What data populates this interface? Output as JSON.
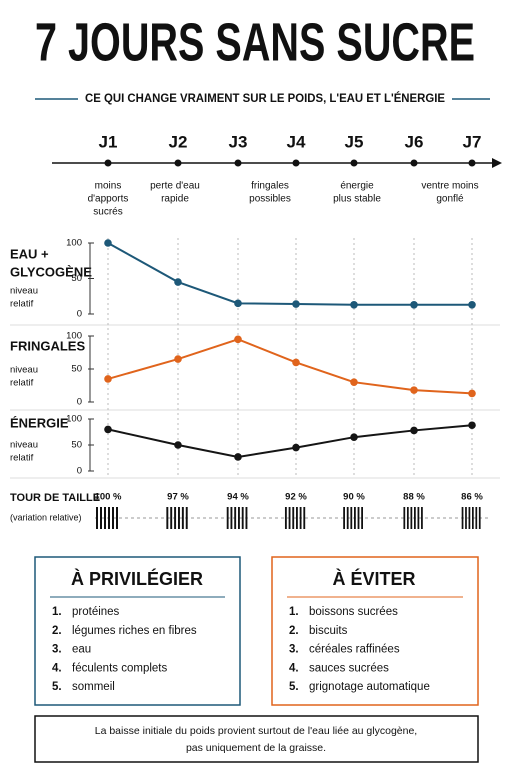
{
  "title": "7 JOURS SANS SUCRE",
  "subtitle": "CE QUI CHANGE VRAIMENT SUR LE POIDS, L'EAU ET L'ÉNERGIE",
  "timeline": {
    "days": [
      "J1",
      "J2",
      "J3",
      "J4",
      "J5",
      "J6",
      "J7"
    ],
    "notes": [
      [
        "moins",
        "d'apports",
        "sucrés"
      ],
      [
        "perte d'eau",
        "rapide"
      ],
      [
        "fringales",
        "possibles"
      ],
      [
        "énergie",
        "plus stable"
      ],
      [
        "ventre moins",
        "gonflé"
      ]
    ]
  },
  "chart_data": [
    {
      "type": "line",
      "title": [
        "EAU +",
        "GLYCOGÈNE"
      ],
      "y_label": [
        "niveau",
        "relatif"
      ],
      "categories": [
        null,
        null,
        null,
        null,
        null,
        null,
        null
      ],
      "series": [
        {
          "color": "#1d5878",
          "values": [
            100,
            45,
            15,
            14,
            13,
            13,
            13
          ]
        }
      ],
      "ylim": [
        0,
        100
      ],
      "yticks": [
        0,
        50,
        100
      ],
      "grid": true
    },
    {
      "type": "line",
      "title": [
        "FRINGALES"
      ],
      "y_label": [
        "niveau",
        "relatif"
      ],
      "categories": [
        null,
        null,
        null,
        null,
        null,
        null,
        null
      ],
      "series": [
        {
          "color": "#e0641c",
          "values": [
            35,
            65,
            95,
            60,
            30,
            18,
            13
          ]
        }
      ],
      "ylim": [
        0,
        100
      ],
      "yticks": [
        0,
        50,
        100
      ],
      "grid": true
    },
    {
      "type": "line",
      "title": [
        "ÉNERGIE"
      ],
      "y_label": [
        "niveau",
        "relatif"
      ],
      "categories": [
        null,
        null,
        null,
        null,
        null,
        null,
        null
      ],
      "series": [
        {
          "color": "#151515",
          "values": [
            80,
            50,
            27,
            45,
            65,
            78,
            88
          ]
        }
      ],
      "ylim": [
        0,
        100
      ],
      "yticks": [
        0,
        50,
        100
      ],
      "grid": true
    }
  ],
  "waist": {
    "label": "TOUR DE TAILLE",
    "sublabel": "(variation relative)",
    "values": [
      100,
      97,
      94,
      92,
      90,
      88,
      86
    ],
    "value_labels": [
      "100 %",
      "97 %",
      "94 %",
      "92 %",
      "90 %",
      "88 %",
      "86 %"
    ]
  },
  "favor": {
    "title": "À PRIVILÉGIER",
    "numbers": [
      "1.",
      "2.",
      "3.",
      "4.",
      "5."
    ],
    "items": [
      "protéines",
      "légumes riches en fibres",
      "eau",
      "féculents complets",
      "sommeil"
    ]
  },
  "avoid": {
    "title": "À ÉVITER",
    "numbers": [
      "1.",
      "2.",
      "3.",
      "4.",
      "5."
    ],
    "items": [
      "boissons sucrées",
      "biscuits",
      "céréales raffinées",
      "sauces sucrées",
      "grignotage automatique"
    ]
  },
  "note": [
    "La baisse initiale du poids provient surtout de l'eau liée au glycogène,",
    "pas uniquement de la graisse."
  ]
}
